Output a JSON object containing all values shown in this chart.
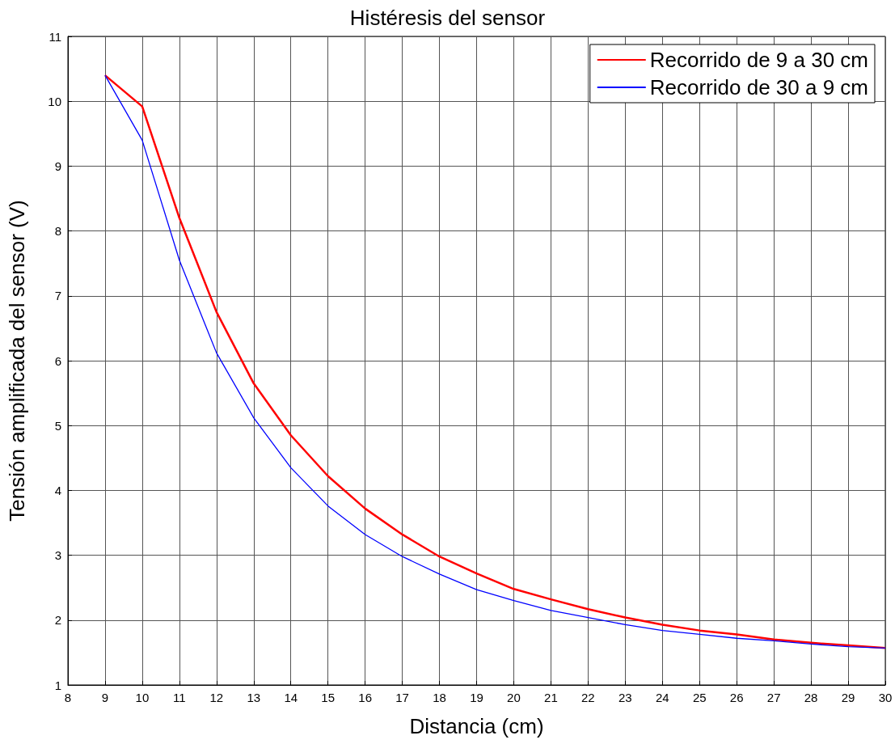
{
  "chart_data": {
    "type": "line",
    "title": "Histéresis del sensor",
    "xlabel": "Distancia (cm)",
    "ylabel": "Tensión amplificada del sensor (V)",
    "x": [
      9,
      10,
      11,
      12,
      13,
      14,
      15,
      16,
      17,
      18,
      19,
      20,
      21,
      22,
      23,
      24,
      25,
      26,
      27,
      28,
      29,
      30
    ],
    "series": [
      {
        "name": "Recorrido de 9 a 30 cm",
        "color": "#ff0000",
        "values": [
          10.4,
          9.92,
          8.2,
          6.75,
          5.65,
          4.85,
          4.22,
          3.72,
          3.32,
          2.98,
          2.72,
          2.48,
          2.32,
          2.17,
          2.04,
          1.93,
          1.84,
          1.78,
          1.7,
          1.65,
          1.61,
          1.57
        ]
      },
      {
        "name": "Recorrido de 30 a 9 cm",
        "color": "#0000ff",
        "values": [
          10.4,
          9.4,
          7.55,
          6.12,
          5.12,
          4.35,
          3.76,
          3.32,
          2.98,
          2.71,
          2.47,
          2.3,
          2.15,
          2.04,
          1.93,
          1.84,
          1.78,
          1.72,
          1.68,
          1.63,
          1.59,
          1.57
        ]
      }
    ],
    "xlim": [
      8,
      30
    ],
    "xticks": [
      8,
      9,
      10,
      11,
      12,
      13,
      14,
      15,
      16,
      17,
      18,
      19,
      20,
      21,
      22,
      23,
      24,
      25,
      26,
      27,
      28,
      29,
      30
    ],
    "ylim": [
      1,
      11
    ],
    "yticks": [
      1,
      2,
      3,
      4,
      5,
      6,
      7,
      8,
      9,
      10,
      11
    ],
    "grid": true,
    "legend": "top right",
    "marker": "none",
    "line_style": "solid"
  }
}
